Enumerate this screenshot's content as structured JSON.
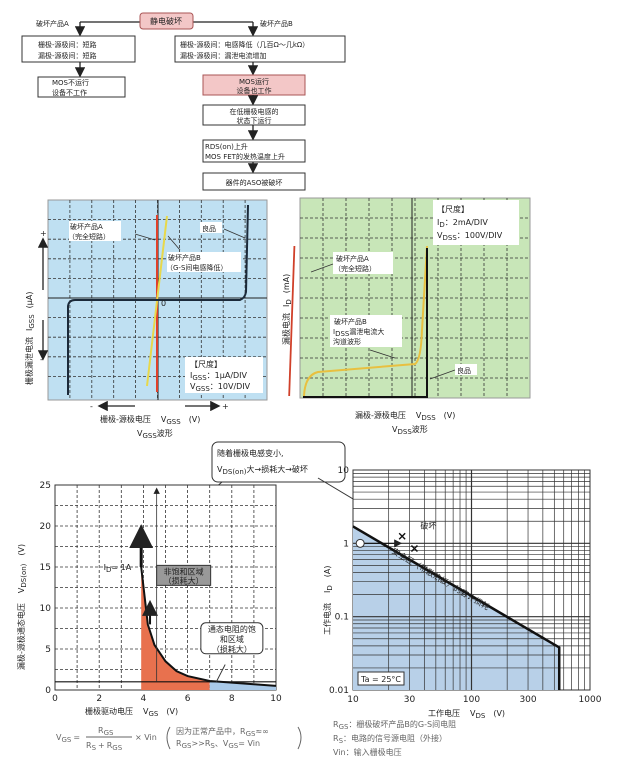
{
  "flowchart": {
    "root": "静电破坏",
    "branch_a_label": "破坏产品A",
    "branch_b_label": "破坏产品B",
    "a_box1": [
      "栅极-源极间：短路",
      "漏极-源极间：短路"
    ],
    "a_box2": [
      "MOS不运行",
      "设备不工作"
    ],
    "b_box1": [
      "栅极-源极间：电感降低（几百Ω～几kΩ）",
      "漏极-源极间：漏泄电流增加"
    ],
    "b_box2": [
      "MOS运行",
      "设备也工作"
    ],
    "b_box3": [
      "在低栅极电感的",
      "状态下运行"
    ],
    "b_box4": [
      "RDS(on)上升",
      "MOS FET的发热温度上升"
    ],
    "b_box5": "器件的ASO被破坏",
    "colors": {
      "highlight": "#f3c7c7"
    }
  },
  "vgss_chart": {
    "bg_color": "#bfe0f2",
    "ylabel": "栅极漏泄电流",
    "ylabel_sym": "I",
    "ylabel_sub": "GSS",
    "ylabel_unit": "(μA)",
    "y_plus": "+",
    "y_minus": "-",
    "origin": "0",
    "label_a": [
      "破坏产品A",
      "（完全短路）"
    ],
    "label_b": [
      "破坏产品B",
      "（G-S间电感降低）"
    ],
    "label_good": "良品",
    "scale_title": "【尺度】",
    "scale_i_sym": "I",
    "scale_i_sub": "GSS",
    "scale_i_val": "：1μA/DIV",
    "scale_v_sym": "V",
    "scale_v_sub": "GSS",
    "scale_v_val": "：10V/DIV",
    "x_minus": "-",
    "x_plus": "+",
    "xlabel": "栅极-源极电压",
    "xlabel_sym": "V",
    "xlabel_sub": "GSS",
    "xlabel_unit": "(V)",
    "caption_sym": "V",
    "caption_sub": "GSS",
    "caption": "波形"
  },
  "vdss_chart": {
    "bg_color": "#c8e6b8",
    "ylabel": "漏极电流",
    "ylabel_sym": "I",
    "ylabel_sub": "D",
    "ylabel_unit": "(mA)",
    "scale_title": "【尺度】",
    "scale_i_sym": "I",
    "scale_i_sub": "D",
    "scale_i_val": "：2mA/DIV",
    "scale_v_sym": "V",
    "scale_v_sub": "DSS",
    "scale_v_val": "：100V/DIV",
    "label_a": [
      "破坏产品A",
      "（完全短路）"
    ],
    "label_b": [
      "破坏产品B",
      "I",
      "DSS",
      "漏泄电流大",
      "沟道波形"
    ],
    "label_good": "良品",
    "xlabel": "漏极-源极电压",
    "xlabel_sym": "V",
    "xlabel_sub": "DSS",
    "xlabel_unit": "(V)",
    "caption_sym": "V",
    "caption_sub": "DSS",
    "caption": "波形"
  },
  "callout": {
    "line1": "随着栅极电感变小,",
    "sym": "V",
    "sub": "DS(on)",
    "line2": "大→损耗大→破坏"
  },
  "chart_data": [
    {
      "type": "area",
      "xlabel": "栅极驱动电压",
      "xlabel_sym": "V",
      "xlabel_sub": "GS",
      "xlabel_unit": "(V)",
      "ylabel": "漏极-源极通态电压",
      "ylabel_sym": "V",
      "ylabel_sub": "DS(on)",
      "ylabel_unit": "(V)",
      "xlim": [
        0,
        10
      ],
      "ylim": [
        0,
        25
      ],
      "xticks": [
        "0",
        "2",
        "4",
        "6",
        "8",
        "10"
      ],
      "yticks": [
        "0",
        "5",
        "10",
        "15",
        "20",
        "25"
      ],
      "grid": true,
      "curve": {
        "x": [
          3.9,
          4.2,
          4.5,
          5.0,
          5.5,
          6.0,
          7.0,
          8.0,
          9.0,
          10.0
        ],
        "y": [
          15,
          8,
          5.5,
          3.5,
          2.3,
          1.7,
          1.1,
          0.9,
          0.7,
          0.5
        ]
      },
      "id_label_sym": "I",
      "id_label_sub": "D",
      "id_label": "= 1A",
      "region_unsat": [
        "非饱和区域",
        "（损耗大）"
      ],
      "region_sat": [
        "通态电阻的饱",
        "和区域",
        "（损耗大）"
      ],
      "colors": {
        "unsaturated": "#e8714e",
        "saturated": "#a9c9e8"
      }
    },
    {
      "type": "area",
      "xlabel": "工作电压",
      "xlabel_sym": "V",
      "xlabel_sub": "DS",
      "xlabel_unit": "(V)",
      "ylabel": "工作电流",
      "ylabel_sym": "I",
      "ylabel_sub": "D",
      "ylabel_unit": "(A)",
      "xscale": "log",
      "yscale": "log",
      "xlim": [
        10,
        1000
      ],
      "ylim": [
        0.01,
        10
      ],
      "xticks": [
        "10",
        "30",
        "100",
        "300",
        "1000"
      ],
      "yticks": [
        "0.01",
        "0.1",
        "1",
        "10"
      ],
      "grid": true,
      "soa_boundary": {
        "x": [
          10,
          550,
          550
        ],
        "y": [
          1.7,
          0.038,
          0.01
        ]
      },
      "operating_point": {
        "x": 11.5,
        "y": 1
      },
      "failure_label": "破坏",
      "soa_label": "安全区（带散热板）的容许损耗",
      "temp_label": "Ta = 25°C",
      "colors": {
        "soa": "#b8d0e8"
      }
    }
  ],
  "formula": {
    "lhs_sym": "V",
    "lhs_sub": "GS",
    "eq": "=",
    "num_sym": "R",
    "num_sub": "GS",
    "den_a_sym": "R",
    "den_a_sub": "S",
    "den_plus": "+",
    "den_b_sym": "R",
    "den_b_sub": "GS",
    "times": "× Vin",
    "note1": "因为正常产品中，R",
    "note1_sub": "GS",
    "note1_end": "≈∞",
    "note2": "R",
    "note2_sub": "GS",
    "note2_mid": ">>R",
    "note2_sub2": "S",
    "note2_end": "、V",
    "note2_sub3": "GS",
    "note2_tail": "= Vin"
  },
  "legend": {
    "rgs_sym": "R",
    "rgs_sub": "GS",
    "rgs": "：栅极破坏产品B的G-S间电阻",
    "rs_sym": "R",
    "rs_sub": "S",
    "rs": "：电路的信号源电阻（外接）",
    "vin": "Vin：输入栅极电压"
  }
}
